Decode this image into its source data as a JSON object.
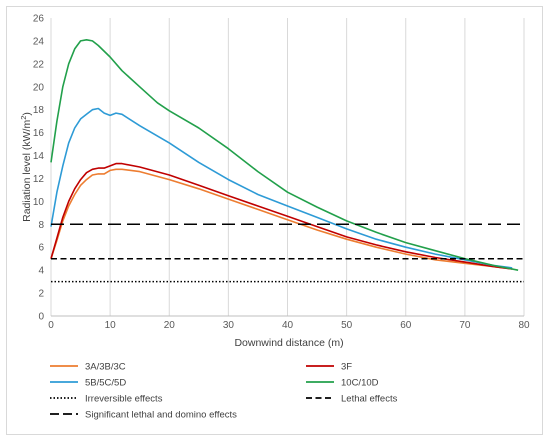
{
  "chart_data": {
    "type": "line",
    "xlabel": "Downwind distance (m)",
    "ylabel_main": "Radiation level (kW/m",
    "ylabel_sup": "2",
    "ylabel_tail": ")",
    "xlim": [
      0,
      80
    ],
    "ylim": [
      0,
      26
    ],
    "x_ticks": [
      0,
      10,
      20,
      30,
      40,
      50,
      60,
      70,
      80
    ],
    "y_ticks": [
      0,
      2,
      4,
      6,
      8,
      10,
      12,
      14,
      16,
      18,
      20,
      22,
      24,
      26
    ],
    "grid": "vertical",
    "legend_position": "bottom",
    "series": [
      {
        "name": "3A/3B/3C",
        "color": "#ed7d31",
        "style": "solid",
        "points": [
          [
            0,
            5.0
          ],
          [
            1,
            6.6
          ],
          [
            2,
            8.3
          ],
          [
            3,
            9.6
          ],
          [
            4,
            10.6
          ],
          [
            5,
            11.4
          ],
          [
            6,
            11.9
          ],
          [
            7,
            12.3
          ],
          [
            8,
            12.4
          ],
          [
            9,
            12.4
          ],
          [
            10,
            12.7
          ],
          [
            11,
            12.8
          ],
          [
            12,
            12.8
          ],
          [
            15,
            12.6
          ],
          [
            20,
            11.9
          ],
          [
            25,
            11.1
          ],
          [
            30,
            10.2
          ],
          [
            35,
            9.3
          ],
          [
            40,
            8.4
          ],
          [
            45,
            7.5
          ],
          [
            50,
            6.7
          ],
          [
            55,
            6.0
          ],
          [
            60,
            5.4
          ],
          [
            65,
            4.9
          ],
          [
            70,
            4.6
          ],
          [
            75,
            4.3
          ],
          [
            78,
            4.1
          ]
        ]
      },
      {
        "name": "3F",
        "color": "#c00000",
        "style": "solid",
        "points": [
          [
            0,
            5.0
          ],
          [
            1,
            6.8
          ],
          [
            2,
            8.6
          ],
          [
            3,
            10.0
          ],
          [
            4,
            11.1
          ],
          [
            5,
            11.9
          ],
          [
            6,
            12.5
          ],
          [
            7,
            12.8
          ],
          [
            8,
            12.9
          ],
          [
            9,
            12.9
          ],
          [
            10,
            13.1
          ],
          [
            11,
            13.3
          ],
          [
            12,
            13.3
          ],
          [
            15,
            13.0
          ],
          [
            20,
            12.3
          ],
          [
            25,
            11.4
          ],
          [
            30,
            10.5
          ],
          [
            35,
            9.6
          ],
          [
            40,
            8.7
          ],
          [
            45,
            7.8
          ],
          [
            50,
            6.9
          ],
          [
            55,
            6.2
          ],
          [
            60,
            5.6
          ],
          [
            65,
            5.1
          ],
          [
            70,
            4.7
          ],
          [
            75,
            4.3
          ],
          [
            78,
            4.1
          ]
        ]
      },
      {
        "name": "5B/5C/5D",
        "color": "#2e9bd6",
        "style": "solid",
        "points": [
          [
            0,
            7.8
          ],
          [
            1,
            10.8
          ],
          [
            2,
            13.1
          ],
          [
            3,
            15.1
          ],
          [
            4,
            16.4
          ],
          [
            5,
            17.2
          ],
          [
            6,
            17.6
          ],
          [
            7,
            18.0
          ],
          [
            8,
            18.1
          ],
          [
            9,
            17.7
          ],
          [
            10,
            17.5
          ],
          [
            11,
            17.7
          ],
          [
            12,
            17.6
          ],
          [
            15,
            16.6
          ],
          [
            20,
            15.1
          ],
          [
            25,
            13.4
          ],
          [
            30,
            11.9
          ],
          [
            35,
            10.6
          ],
          [
            40,
            9.6
          ],
          [
            45,
            8.6
          ],
          [
            50,
            7.6
          ],
          [
            55,
            6.7
          ],
          [
            60,
            6.0
          ],
          [
            65,
            5.4
          ],
          [
            70,
            4.9
          ],
          [
            75,
            4.4
          ],
          [
            78,
            4.2
          ]
        ]
      },
      {
        "name": "10C/10D",
        "color": "#22a04b",
        "style": "solid",
        "points": [
          [
            0,
            13.4
          ],
          [
            1,
            17.0
          ],
          [
            2,
            20.0
          ],
          [
            3,
            22.0
          ],
          [
            4,
            23.3
          ],
          [
            5,
            24.0
          ],
          [
            6,
            24.1
          ],
          [
            7,
            24.0
          ],
          [
            8,
            23.6
          ],
          [
            10,
            22.6
          ],
          [
            12,
            21.4
          ],
          [
            15,
            20.0
          ],
          [
            18,
            18.6
          ],
          [
            20,
            17.9
          ],
          [
            25,
            16.4
          ],
          [
            30,
            14.6
          ],
          [
            35,
            12.6
          ],
          [
            40,
            10.8
          ],
          [
            45,
            9.5
          ],
          [
            50,
            8.3
          ],
          [
            55,
            7.3
          ],
          [
            60,
            6.4
          ],
          [
            65,
            5.7
          ],
          [
            70,
            5.0
          ],
          [
            75,
            4.4
          ],
          [
            79,
            4.0
          ]
        ]
      },
      {
        "name": "Irreversible effects",
        "color": "#000000",
        "style": "dotted",
        "points": [
          [
            0,
            3.0
          ],
          [
            80,
            3.0
          ]
        ]
      },
      {
        "name": "Lethal effects",
        "color": "#000000",
        "style": "dashed",
        "points": [
          [
            0,
            5.0
          ],
          [
            80,
            5.0
          ]
        ]
      },
      {
        "name": "Significant lethal and domino effects",
        "color": "#000000",
        "style": "longdash",
        "points": [
          [
            0,
            8.0
          ],
          [
            80,
            8.0
          ]
        ]
      }
    ]
  }
}
